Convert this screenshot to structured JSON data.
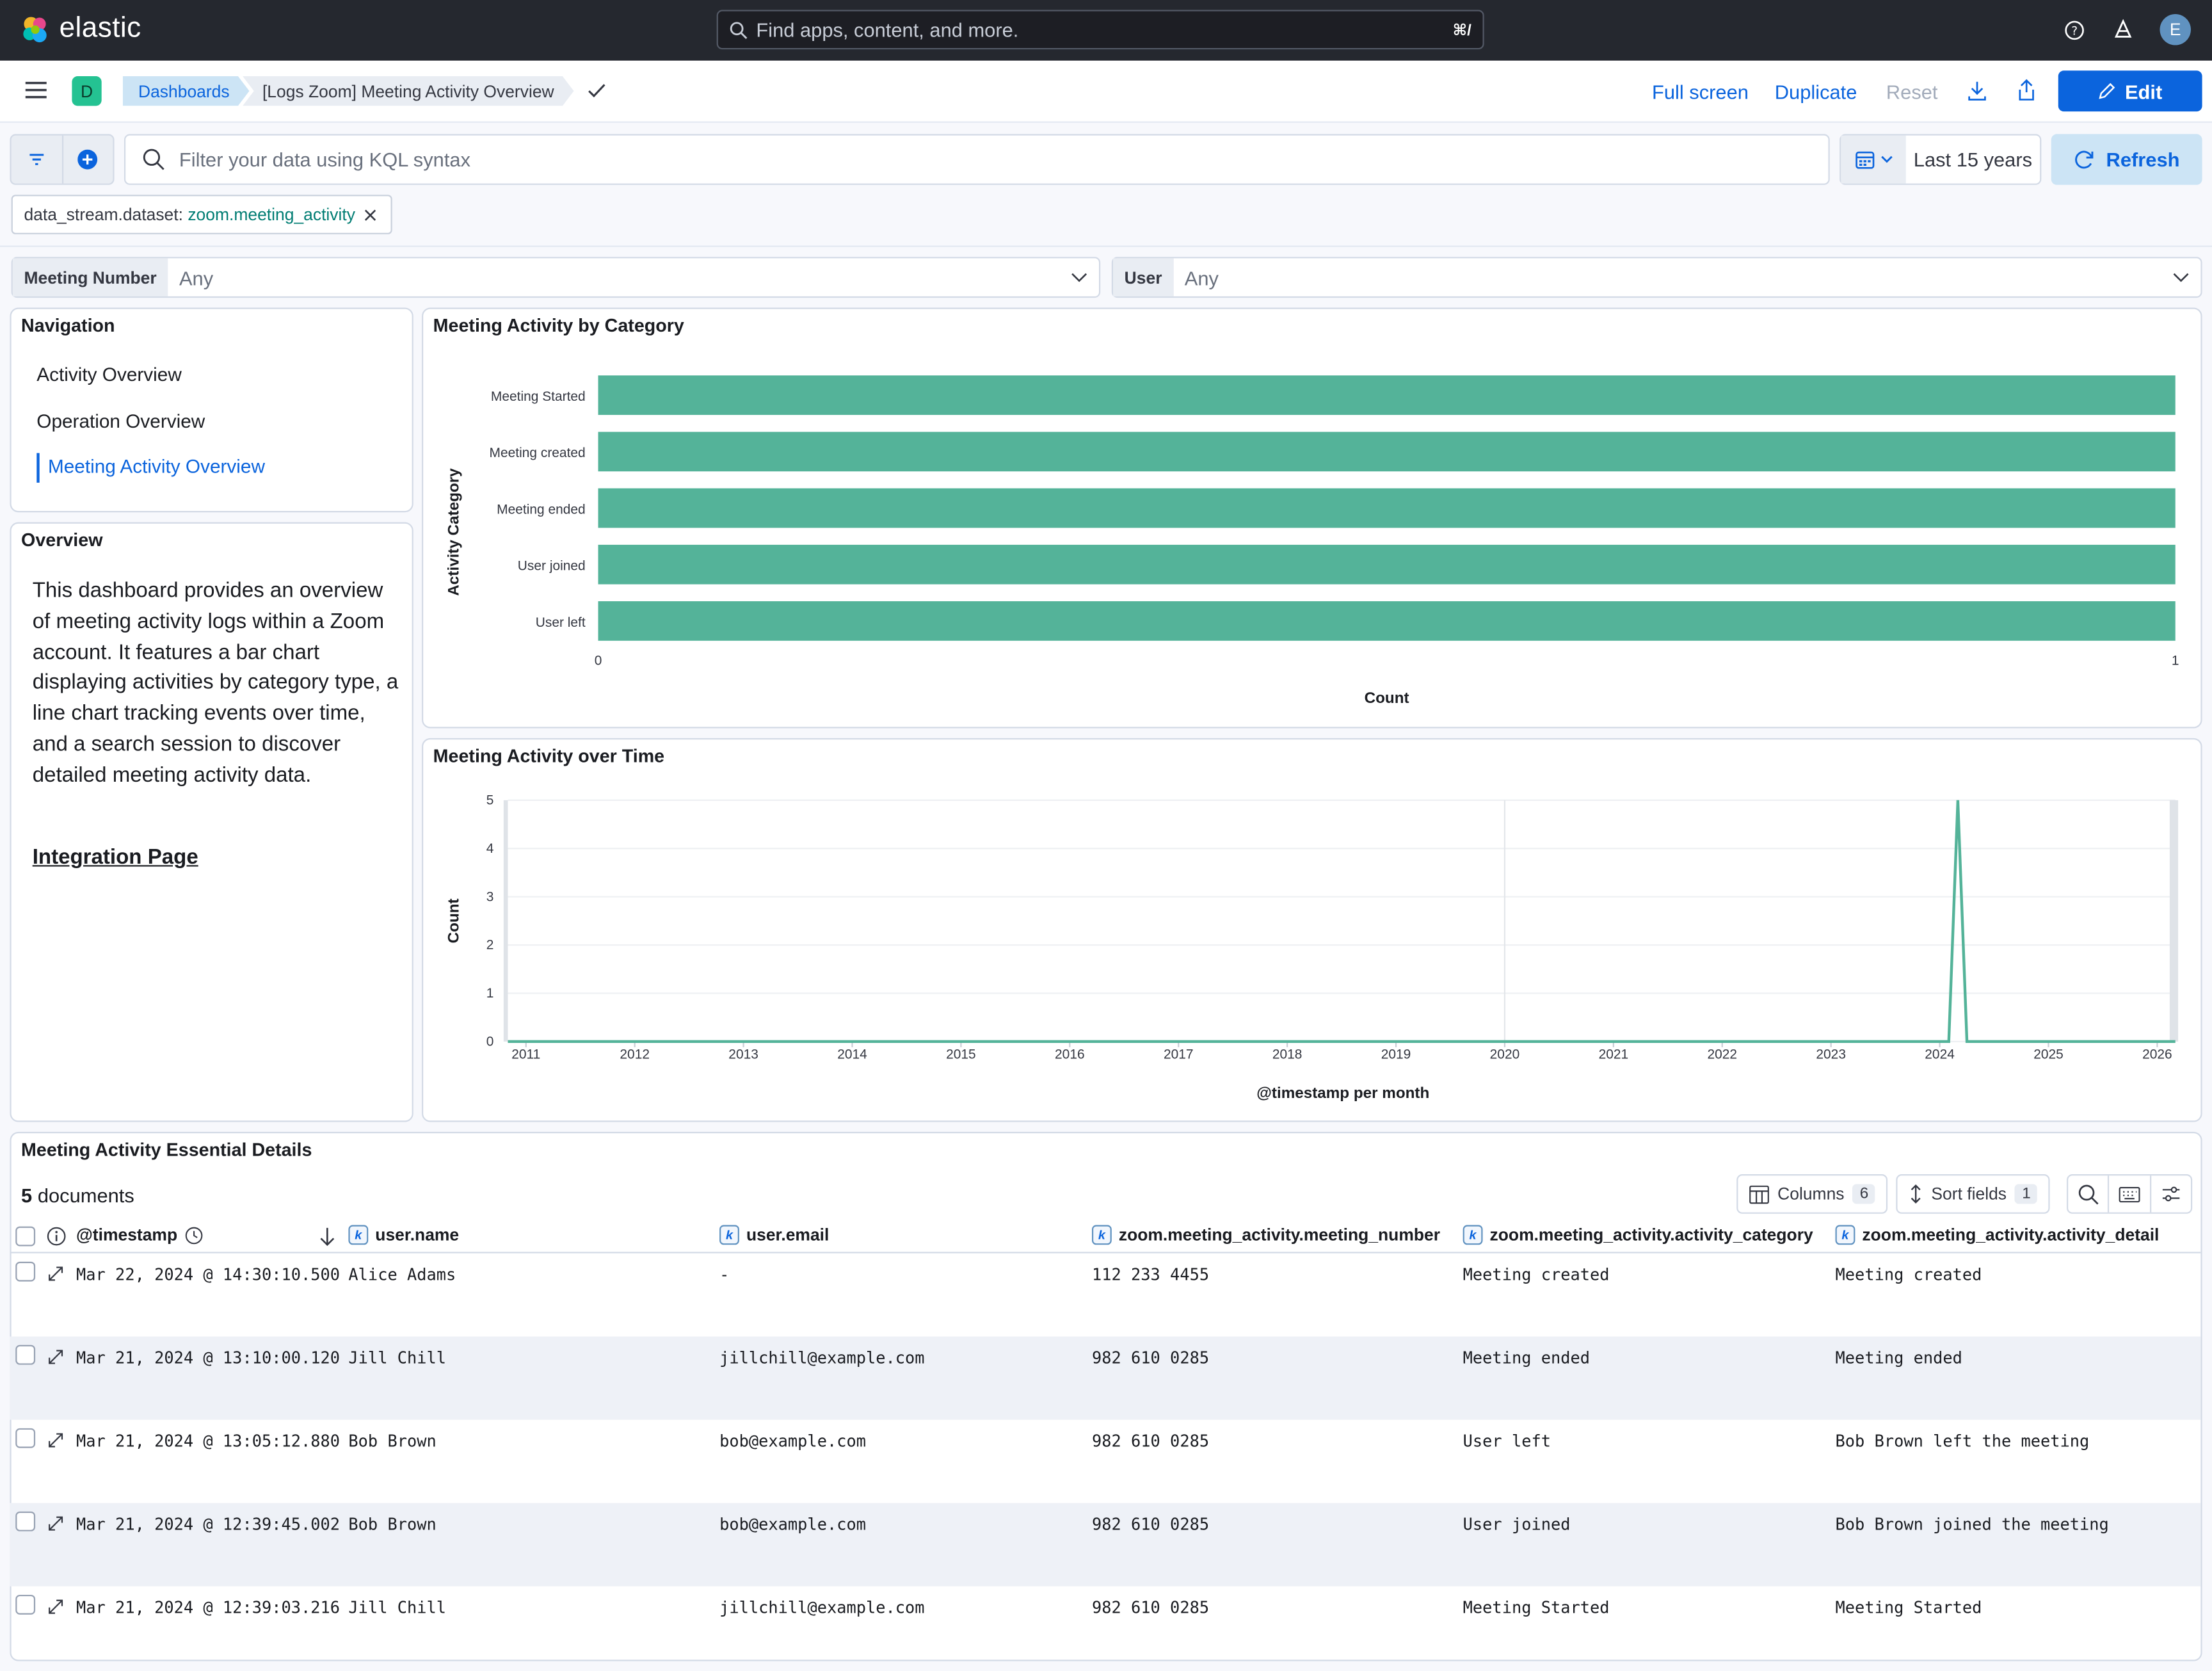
{
  "header": {
    "logo_text": "elastic",
    "search_placeholder": "Find apps, content, and more.",
    "search_shortcut": "⌘/",
    "avatar_initial": "E"
  },
  "toolbar": {
    "space_initial": "D",
    "breadcrumbs": [
      "Dashboards",
      "[Logs Zoom] Meeting Activity Overview"
    ],
    "full_screen": "Full screen",
    "duplicate": "Duplicate",
    "reset": "Reset",
    "edit": "Edit"
  },
  "query": {
    "placeholder": "Filter your data using KQL syntax",
    "time_range": "Last 15 years",
    "refresh": "Refresh"
  },
  "filter_pill": {
    "key": "data_stream.dataset:",
    "value": "zoom.meeting_activity"
  },
  "controls": [
    {
      "label": "Meeting Number",
      "value": "Any"
    },
    {
      "label": "User",
      "value": "Any"
    }
  ],
  "navigation": {
    "title": "Navigation",
    "items": [
      "Activity Overview",
      "Operation Overview",
      "Meeting Activity Overview"
    ],
    "active_index": 2
  },
  "overview": {
    "title": "Overview",
    "text": "This dashboard provides an overview of meeting activity logs within a Zoom account. It features a bar chart displaying activities by category type, a line chart tracking events over time, and a search session to discover detailed meeting activity data.",
    "link": "Integration Page"
  },
  "colors": {
    "accent": "#0b64dd",
    "series": "#54b399",
    "header_bg": "#25282f"
  },
  "chart_data": [
    {
      "type": "bar",
      "orientation": "horizontal",
      "title": "Meeting Activity by Category",
      "ylabel": "Activity Category",
      "xlabel": "Count",
      "categories": [
        "Meeting Started",
        "Meeting created",
        "Meeting ended",
        "User joined",
        "User left"
      ],
      "values": [
        1,
        1,
        1,
        1,
        1
      ],
      "xlim": [
        0,
        1
      ],
      "ticks": [
        "0",
        "1"
      ]
    },
    {
      "type": "line",
      "title": "Meeting Activity over Time",
      "ylabel": "Count",
      "xlabel": "@timestamp per month",
      "x_ticks": [
        "2011",
        "2012",
        "2013",
        "2014",
        "2015",
        "2016",
        "2017",
        "2018",
        "2019",
        "2020",
        "2021",
        "2022",
        "2023",
        "2024",
        "2025",
        "2026"
      ],
      "y_ticks": [
        "0",
        "1",
        "2",
        "3",
        "4",
        "5"
      ],
      "ylim": [
        0,
        5
      ],
      "xlim": [
        "2010-11",
        "2026-03"
      ],
      "points": [
        {
          "x": "2010-11",
          "y": 0
        },
        {
          "x": "2024-02",
          "y": 0
        },
        {
          "x": "2024-03",
          "y": 5
        },
        {
          "x": "2024-04",
          "y": 0
        },
        {
          "x": "2026-03",
          "y": 0
        }
      ]
    }
  ],
  "table": {
    "title": "Meeting Activity Essential Details",
    "count": "5",
    "count_label": "documents",
    "columns_btn": "Columns",
    "columns_count": "6",
    "sort_btn": "Sort fields",
    "sort_count": "1",
    "headers": [
      "@timestamp",
      "user.name",
      "user.email",
      "zoom.meeting_activity.meeting_number",
      "zoom.meeting_activity.activity_category",
      "zoom.meeting_activity.activity_detail"
    ],
    "rows": [
      [
        "Mar 22, 2024 @ 14:30:10.500",
        "Alice Adams",
        "-",
        "112 233 4455",
        "Meeting created",
        "Meeting created"
      ],
      [
        "Mar 21, 2024 @ 13:10:00.120",
        "Jill Chill",
        "jillchill@example.com",
        "982 610 0285",
        "Meeting ended",
        "Meeting ended"
      ],
      [
        "Mar 21, 2024 @ 13:05:12.880",
        "Bob Brown",
        "bob@example.com",
        "982 610 0285",
        "User left",
        "Bob Brown left the meeting"
      ],
      [
        "Mar 21, 2024 @ 12:39:45.002",
        "Bob Brown",
        "bob@example.com",
        "982 610 0285",
        "User joined",
        "Bob Brown joined the meeting"
      ],
      [
        "Mar 21, 2024 @ 12:39:03.216",
        "Jill Chill",
        "jillchill@example.com",
        "982 610 0285",
        "Meeting Started",
        "Meeting Started"
      ]
    ]
  }
}
